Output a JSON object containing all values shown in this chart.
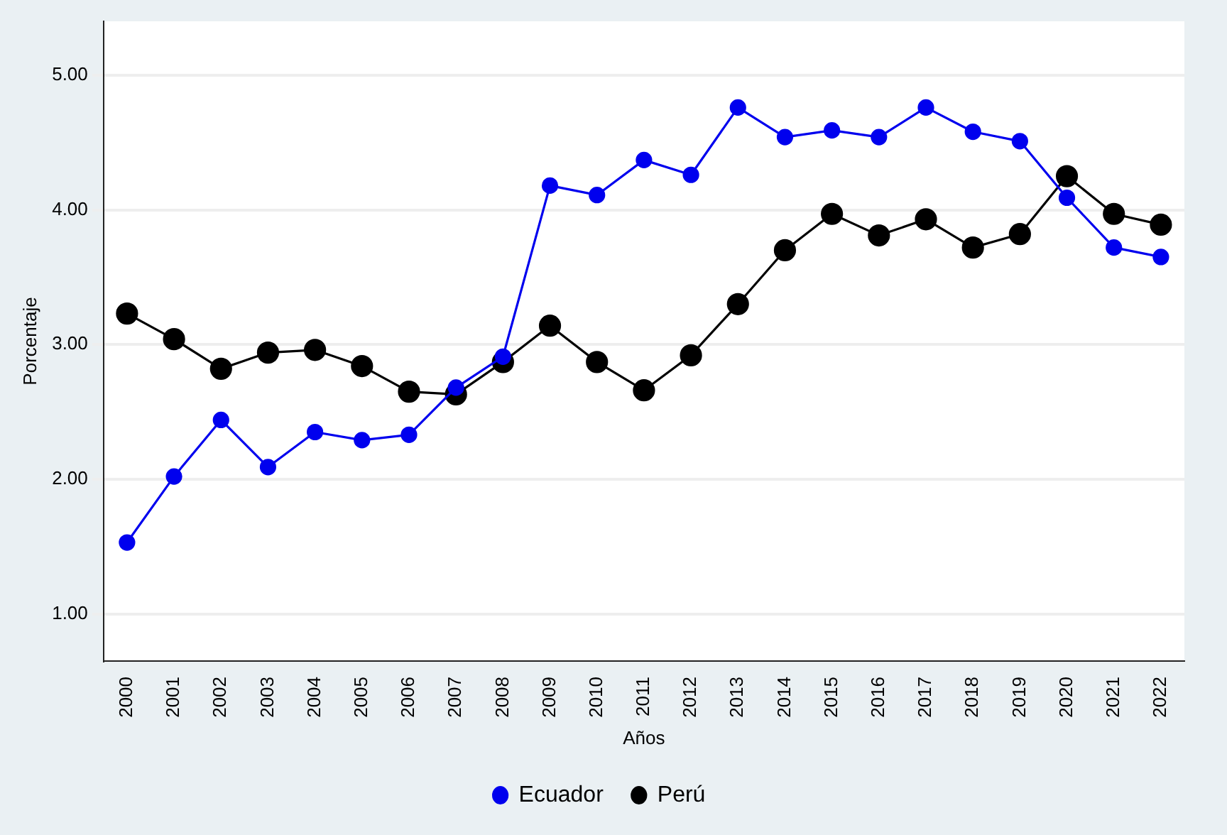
{
  "chart_data": {
    "type": "line",
    "xlabel": "Años",
    "ylabel": "Porcentaje",
    "categories": [
      "2000",
      "2001",
      "2002",
      "2003",
      "2004",
      "2005",
      "2006",
      "2007",
      "2008",
      "2009",
      "2010",
      "2011",
      "2012",
      "2013",
      "2014",
      "2015",
      "2016",
      "2017",
      "2018",
      "2019",
      "2020",
      "2021",
      "2022"
    ],
    "series": [
      {
        "name": "Ecuador",
        "color": "#0000ee",
        "values": [
          1.53,
          2.02,
          2.44,
          2.09,
          2.35,
          2.29,
          2.33,
          2.68,
          2.91,
          4.18,
          4.11,
          4.37,
          4.26,
          4.76,
          4.54,
          4.59,
          4.54,
          4.76,
          4.58,
          4.51,
          4.09,
          3.72,
          3.65
        ]
      },
      {
        "name": "Perú",
        "color": "#000000",
        "values": [
          3.23,
          3.04,
          2.82,
          2.94,
          2.96,
          2.84,
          2.65,
          2.63,
          2.87,
          3.14,
          2.87,
          2.66,
          2.92,
          3.3,
          3.7,
          3.97,
          3.81,
          3.93,
          3.72,
          3.82,
          4.25,
          3.97,
          3.89
        ]
      }
    ],
    "ylim": [
      0.65,
      5.4
    ],
    "yticks": [
      {
        "value": 1,
        "label": "1.00"
      },
      {
        "value": 2,
        "label": "2.00"
      },
      {
        "value": 3,
        "label": "3.00"
      },
      {
        "value": 4,
        "label": "4.00"
      },
      {
        "value": 5,
        "label": "5.00"
      }
    ],
    "grid": "y",
    "legend": "bottom",
    "marker": "circle",
    "line_style": "solid"
  }
}
